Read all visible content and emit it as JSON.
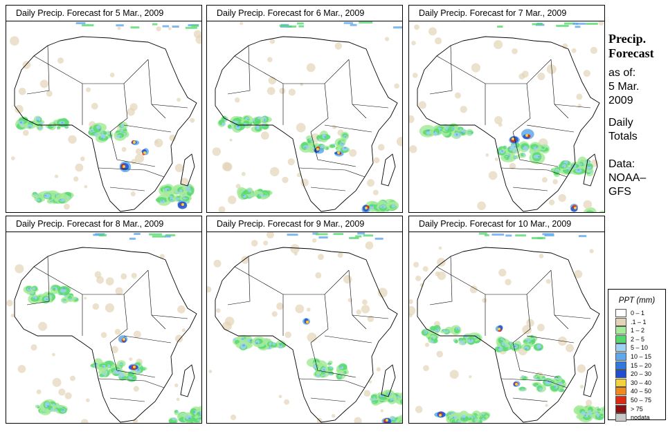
{
  "panels": [
    {
      "title": "Daily Precip. Forecast for  5 Mar., 2009"
    },
    {
      "title": "Daily Precip. Forecast for  6 Mar., 2009"
    },
    {
      "title": "Daily Precip. Forecast for  7 Mar., 2009"
    },
    {
      "title": "Daily Precip. Forecast for  8 Mar., 2009"
    },
    {
      "title": "Daily Precip. Forecast for  9 Mar., 2009"
    },
    {
      "title": "Daily Precip. Forecast for  10 Mar., 2009"
    }
  ],
  "side": {
    "title_line1": "Precip.",
    "title_line2": "Forecast",
    "asof_label": "as of:",
    "date_line1": "5 Mar.",
    "date_line2": "2009",
    "totals_line1": "Daily",
    "totals_line2": "Totals",
    "data_line1": "Data:",
    "data_line2": "NOAA–",
    "data_line3": "GFS"
  },
  "legend": {
    "title": "PPT (mm)",
    "entries": [
      {
        "label": "0 – 1",
        "color": "#ffffff"
      },
      {
        "label": ".1 – 1",
        "color": "#e3d4b8"
      },
      {
        "label": "1 – 2",
        "color": "#a6eb9a"
      },
      {
        "label": "2 – 5",
        "color": "#55d96e"
      },
      {
        "label": "5 – 10",
        "color": "#9fd1f2"
      },
      {
        "label": "10 – 15",
        "color": "#5fa8ec"
      },
      {
        "label": "15 – 20",
        "color": "#2f78dd"
      },
      {
        "label": "20 – 30",
        "color": "#1f4fcf"
      },
      {
        "label": "30 – 40",
        "color": "#f3d23c"
      },
      {
        "label": "40 – 50",
        "color": "#f18a1c"
      },
      {
        "label": "50 – 75",
        "color": "#de2a12"
      },
      {
        "label": "> 75",
        "color": "#8c1010"
      },
      {
        "label": "nodata",
        "color": "#c8c8c8"
      }
    ]
  }
}
